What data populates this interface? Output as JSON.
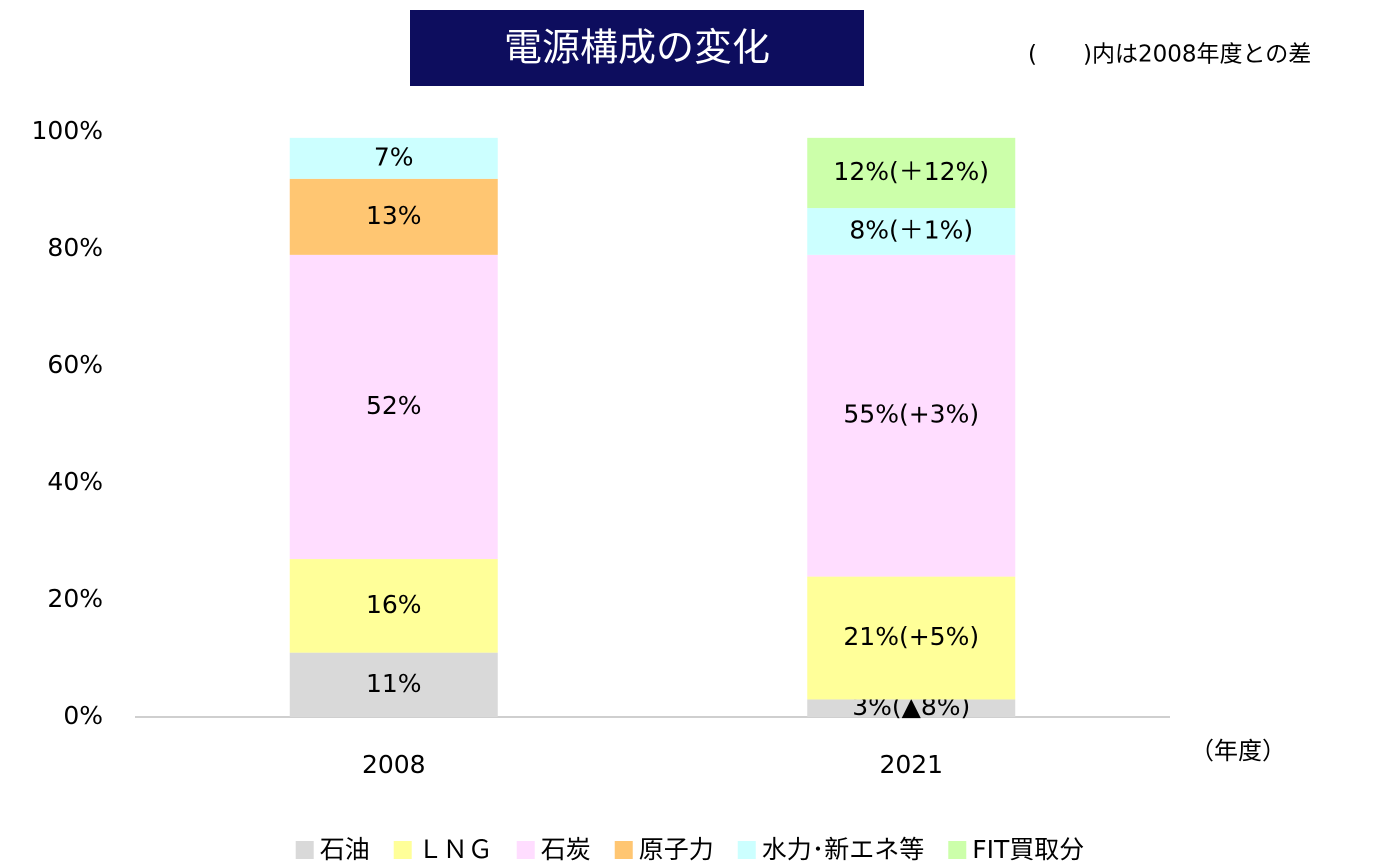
{
  "chart_data": {
    "type": "stacked_bar",
    "title": "電源構成の変化",
    "note": "(　　)内は2008年度との差",
    "x_label": "（年度）",
    "categories": [
      "2008",
      "2021"
    ],
    "series": [
      {
        "name": "石油",
        "color": "#d9d9d9",
        "values": [
          11,
          3
        ],
        "value_labels": [
          "11%",
          "3%(▲8%)"
        ]
      },
      {
        "name": "ＬＮＧ",
        "color": "#ffff99",
        "values": [
          16,
          21
        ],
        "value_labels": [
          "16%",
          "21%(+5%)"
        ]
      },
      {
        "name": "石炭",
        "color": "#ffddff",
        "values": [
          52,
          55
        ],
        "value_labels": [
          "52%",
          "55%(+3%)"
        ]
      },
      {
        "name": "原子力",
        "color": "#ffc672",
        "values": [
          13,
          null
        ],
        "value_labels": [
          "13%",
          null
        ]
      },
      {
        "name": "水力･新エネ等",
        "color": "#ccffff",
        "values": [
          7,
          8
        ],
        "value_labels": [
          "7%",
          "8%(＋1%)"
        ]
      },
      {
        "name": "FIT買取分",
        "color": "#ccffaa",
        "values": [
          null,
          12
        ],
        "value_labels": [
          null,
          "12%(＋12%)"
        ]
      }
    ],
    "ylim": [
      0,
      100
    ],
    "yticks": [
      {
        "value": 0,
        "label": "0%"
      },
      {
        "value": 20,
        "label": "20%"
      },
      {
        "value": 40,
        "label": "40%"
      },
      {
        "value": 60,
        "label": "60%"
      },
      {
        "value": 80,
        "label": "80%"
      },
      {
        "value": 100,
        "label": "100%"
      }
    ],
    "grid": false,
    "legend": "bottom"
  }
}
